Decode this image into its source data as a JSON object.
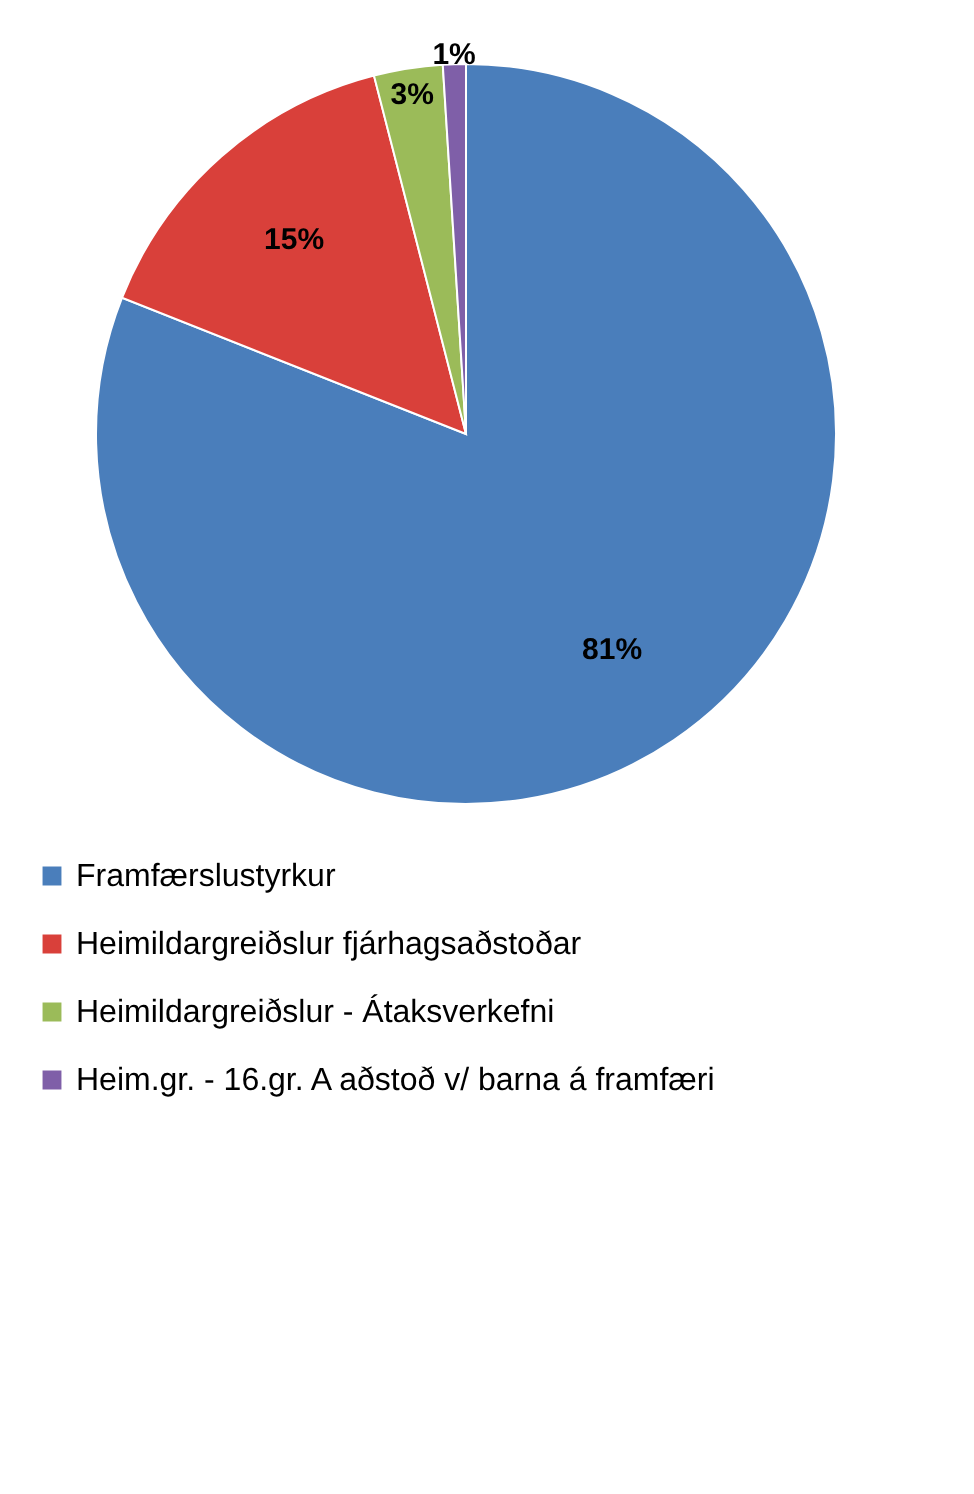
{
  "chart_data": {
    "type": "pie",
    "categories": [
      "Framfærslustyrkur",
      "Heimildargreiðslur fjárhagsaðstoðar",
      "Heimildargreiðslur - Átaksverkefni",
      "Heim.gr. - 16.gr. A aðstoð v/ barna á framfæri"
    ],
    "values": [
      81,
      15,
      3,
      1
    ],
    "value_labels": [
      "81%",
      "15%",
      "3%",
      "1%"
    ],
    "colors": [
      "#4a7ebb",
      "#d9403a",
      "#9bbb59",
      "#7f5fa8"
    ],
    "legend": "bottom"
  }
}
